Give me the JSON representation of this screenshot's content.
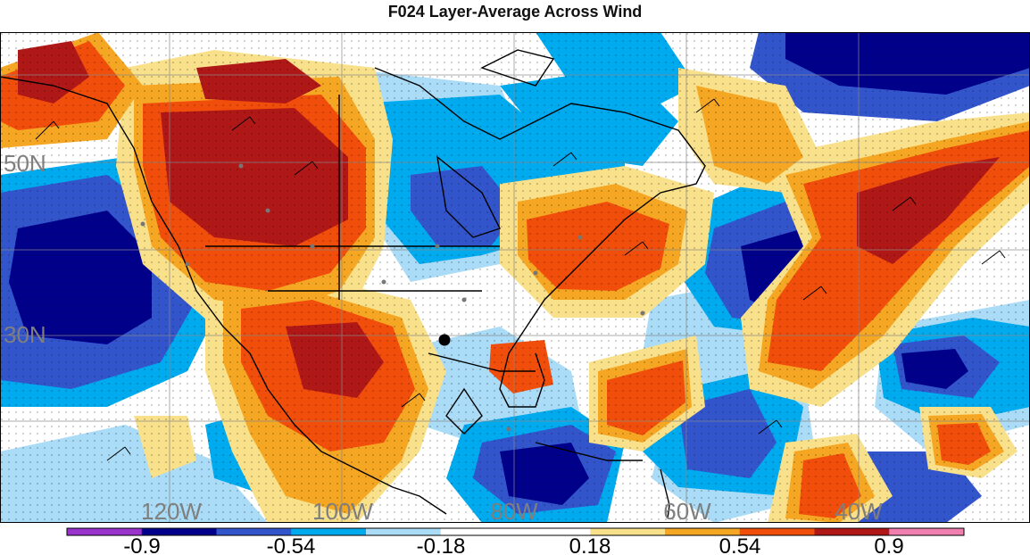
{
  "title": "F024 Layer-Average Across Wind",
  "map": {
    "lat_labels": [
      "50N",
      "30N"
    ],
    "lon_labels": [
      "120W",
      "100W",
      "80W",
      "60W",
      "40W"
    ]
  },
  "colorbar": {
    "tick_labels": [
      "-0.9",
      "-0.54",
      "-0.18",
      "0.18",
      "0.54",
      "0.9"
    ],
    "colors": [
      "#9933cc",
      "#00008b",
      "#3355cc",
      "#00aaee",
      "#aadcf7",
      "#ffffff",
      "#ffffff",
      "#f9e08a",
      "#f5a623",
      "#f04e0a",
      "#b01818",
      "#f080b0"
    ]
  }
}
